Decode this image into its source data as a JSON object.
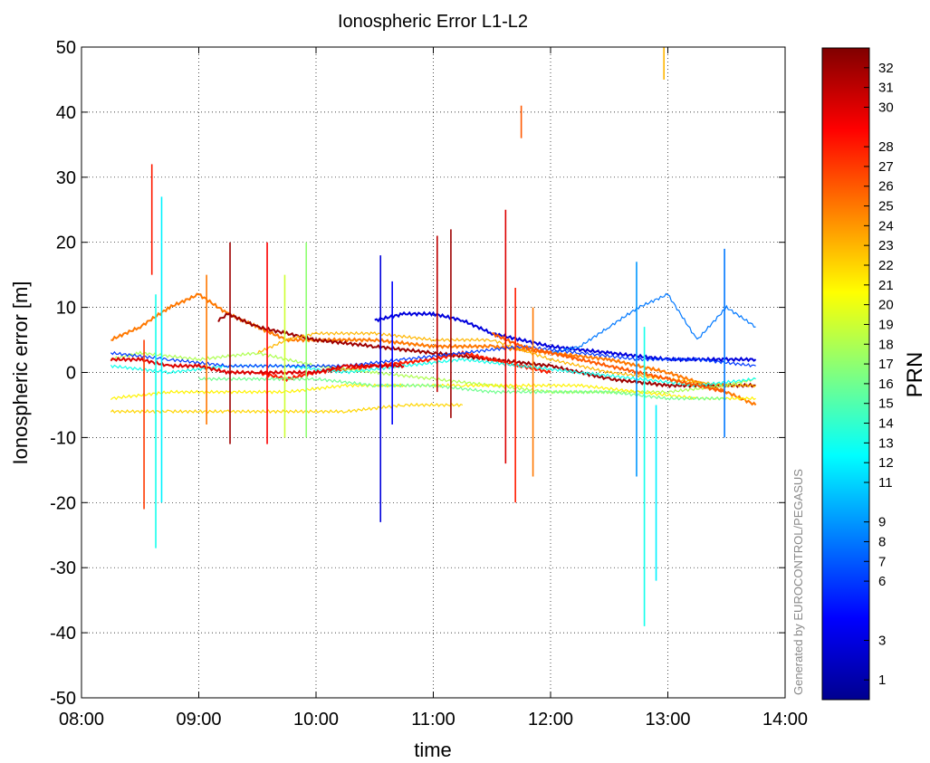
{
  "chart_data": {
    "type": "line",
    "title": "Ionospheric Error L1-L2",
    "xlabel": "time",
    "ylabel": "Ionospheric error [m]",
    "xlim": [
      "08:00",
      "14:00"
    ],
    "ylim": [
      -50,
      50
    ],
    "x_ticks": [
      "08:00",
      "09:00",
      "10:00",
      "11:00",
      "12:00",
      "13:00",
      "14:00"
    ],
    "y_ticks": [
      "50",
      "40",
      "30",
      "20",
      "10",
      "0",
      "-10",
      "-20",
      "-30",
      "-40",
      "-50"
    ],
    "grid": true,
    "grid_style": "dotted",
    "colorbar": {
      "label": "PRN",
      "range": [
        0,
        33
      ],
      "colormap": "jet",
      "ticks": [
        "32",
        "31",
        "30",
        "28",
        "27",
        "26",
        "25",
        "24",
        "23",
        "22",
        "21",
        "20",
        "19",
        "18",
        "17",
        "16",
        "15",
        "14",
        "13",
        "12",
        "11",
        "9",
        "8",
        "7",
        "6",
        "3",
        "1"
      ]
    },
    "watermark": "Generated by EUROCONTROL/PEGASUS",
    "series": [
      {
        "prn": 25,
        "points": [
          [
            "08:15",
            5
          ],
          [
            "08:30",
            7
          ],
          [
            "08:45",
            10
          ],
          [
            "09:00",
            12
          ],
          [
            "09:15",
            9
          ],
          [
            "09:30",
            7
          ],
          [
            "09:45",
            5
          ],
          [
            "10:00",
            5
          ],
          [
            "10:30",
            5
          ],
          [
            "11:00",
            4
          ],
          [
            "11:30",
            4
          ],
          [
            "12:00",
            3
          ],
          [
            "12:30",
            2
          ],
          [
            "13:00",
            0
          ],
          [
            "13:30",
            -3
          ],
          [
            "13:45",
            -5
          ]
        ]
      },
      {
        "prn": 32,
        "points": [
          [
            "09:10",
            8
          ],
          [
            "09:15",
            9
          ],
          [
            "09:30",
            7
          ],
          [
            "09:45",
            6
          ],
          [
            "10:00",
            5
          ],
          [
            "10:30",
            4
          ],
          [
            "11:00",
            3
          ],
          [
            "11:30",
            2
          ],
          [
            "12:00",
            1
          ],
          [
            "12:30",
            -1
          ],
          [
            "13:00",
            -2
          ],
          [
            "13:30",
            -2
          ],
          [
            "13:45",
            -2
          ]
        ]
      },
      {
        "prn": 3,
        "points": [
          [
            "10:30",
            8
          ],
          [
            "10:45",
            9
          ],
          [
            "11:00",
            9
          ],
          [
            "11:15",
            8
          ],
          [
            "11:30",
            6
          ],
          [
            "12:00",
            4
          ],
          [
            "12:30",
            3
          ],
          [
            "13:00",
            2
          ],
          [
            "13:30",
            2
          ],
          [
            "13:45",
            2
          ]
        ]
      },
      {
        "prn": 8,
        "points": [
          [
            "12:00",
            3
          ],
          [
            "12:15",
            4
          ],
          [
            "12:30",
            7
          ],
          [
            "12:45",
            10
          ],
          [
            "13:00",
            12
          ],
          [
            "13:15",
            5
          ],
          [
            "13:30",
            10
          ],
          [
            "13:45",
            7
          ]
        ]
      },
      {
        "prn": 28,
        "points": [
          [
            "09:30",
            0
          ],
          [
            "09:45",
            -1
          ],
          [
            "10:00",
            0
          ],
          [
            "10:30",
            1
          ],
          [
            "11:00",
            2
          ],
          [
            "11:15",
            3
          ],
          [
            "11:30",
            2
          ],
          [
            "11:45",
            1
          ],
          [
            "12:00",
            0
          ]
        ]
      },
      {
        "prn": 23,
        "points": [
          [
            "09:30",
            3
          ],
          [
            "09:45",
            5
          ],
          [
            "10:00",
            6
          ],
          [
            "10:30",
            6
          ],
          [
            "11:00",
            5
          ],
          [
            "11:30",
            5
          ],
          [
            "12:00",
            2
          ],
          [
            "12:30",
            0
          ],
          [
            "13:00",
            -1
          ],
          [
            "13:30",
            -2
          ],
          [
            "13:45",
            -2
          ]
        ]
      },
      {
        "prn": 18,
        "points": [
          [
            "08:15",
            2
          ],
          [
            "08:30",
            3
          ],
          [
            "09:00",
            2
          ],
          [
            "09:30",
            3
          ],
          [
            "10:00",
            1
          ],
          [
            "10:30",
            0
          ],
          [
            "11:00",
            -1
          ],
          [
            "11:30",
            -2
          ],
          [
            "12:00",
            -3
          ],
          [
            "12:30",
            -3
          ],
          [
            "13:00",
            -3
          ],
          [
            "13:30",
            -2
          ],
          [
            "13:45",
            -1
          ]
        ]
      },
      {
        "prn": 13,
        "points": [
          [
            "08:15",
            1
          ],
          [
            "08:45",
            0
          ],
          [
            "09:15",
            1
          ],
          [
            "09:45",
            1
          ],
          [
            "10:15",
            0
          ],
          [
            "10:45",
            1
          ],
          [
            "11:15",
            2
          ],
          [
            "11:45",
            1
          ],
          [
            "12:15",
            0
          ],
          [
            "12:45",
            -1
          ],
          [
            "13:15",
            -2
          ],
          [
            "13:45",
            -1
          ]
        ]
      },
      {
        "prn": 21,
        "points": [
          [
            "08:15",
            -4
          ],
          [
            "08:45",
            -3
          ],
          [
            "09:15",
            -3
          ],
          [
            "09:45",
            -3
          ],
          [
            "10:15",
            -2
          ],
          [
            "10:45",
            -2
          ],
          [
            "11:15",
            -2
          ],
          [
            "11:45",
            -2
          ],
          [
            "12:15",
            -2
          ],
          [
            "12:45",
            -3
          ],
          [
            "13:15",
            -4
          ],
          [
            "13:45",
            -4
          ]
        ]
      },
      {
        "prn": 22,
        "points": [
          [
            "08:15",
            -6
          ],
          [
            "08:45",
            -6
          ],
          [
            "09:15",
            -6
          ],
          [
            "09:45",
            -6
          ],
          [
            "10:15",
            -6
          ],
          [
            "10:45",
            -5
          ],
          [
            "11:15",
            -5
          ]
        ]
      },
      {
        "prn": 16,
        "points": [
          [
            "09:00",
            -1
          ],
          [
            "09:30",
            -1
          ],
          [
            "10:00",
            -1
          ],
          [
            "10:30",
            -2
          ],
          [
            "11:00",
            -2
          ],
          [
            "11:30",
            -3
          ],
          [
            "12:00",
            -3
          ],
          [
            "12:30",
            -3
          ],
          [
            "13:00",
            -4
          ],
          [
            "13:30",
            -4
          ]
        ]
      },
      {
        "prn": 6,
        "points": [
          [
            "08:15",
            3
          ],
          [
            "08:45",
            2
          ],
          [
            "09:15",
            1
          ],
          [
            "09:45",
            1
          ],
          [
            "10:15",
            1
          ],
          [
            "10:45",
            2
          ],
          [
            "11:15",
            3
          ],
          [
            "11:45",
            4
          ],
          [
            "12:15",
            3
          ],
          [
            "12:45",
            2
          ],
          [
            "13:15",
            2
          ],
          [
            "13:45",
            1
          ]
        ]
      },
      {
        "prn": 30,
        "points": [
          [
            "08:15",
            2
          ],
          [
            "08:30",
            2
          ],
          [
            "08:45",
            1
          ],
          [
            "09:00",
            1
          ],
          [
            "09:15",
            0
          ],
          [
            "09:30",
            0
          ],
          [
            "09:45",
            0
          ],
          [
            "10:00",
            0
          ],
          [
            "10:15",
            1
          ],
          [
            "10:30",
            1
          ],
          [
            "10:45",
            1
          ]
        ]
      },
      {
        "prn": 26,
        "points": [
          [
            "11:30",
            6
          ],
          [
            "11:45",
            4
          ],
          [
            "12:00",
            3
          ],
          [
            "12:15",
            2
          ],
          [
            "12:30",
            1
          ],
          [
            "12:45",
            0
          ],
          [
            "13:00",
            -1
          ],
          [
            "13:15",
            -2
          ],
          [
            "13:30",
            -3
          ]
        ]
      }
    ],
    "spikes": [
      {
        "prn": 27,
        "x": "08:32",
        "y": [
          -21,
          5
        ]
      },
      {
        "prn": 28,
        "x": "08:36",
        "y": [
          15,
          32
        ]
      },
      {
        "prn": 13,
        "x": "08:38",
        "y": [
          -27,
          12
        ]
      },
      {
        "prn": 12,
        "x": "08:41",
        "y": [
          -20,
          27
        ]
      },
      {
        "prn": 25,
        "x": "09:04",
        "y": [
          -8,
          15
        ]
      },
      {
        "prn": 32,
        "x": "09:16",
        "y": [
          -11,
          20
        ]
      },
      {
        "prn": 29,
        "x": "09:35",
        "y": [
          -11,
          20
        ]
      },
      {
        "prn": 19,
        "x": "09:44",
        "y": [
          -10,
          15
        ]
      },
      {
        "prn": 17,
        "x": "09:55",
        "y": [
          -10,
          20
        ]
      },
      {
        "prn": 3,
        "x": "10:33",
        "y": [
          -23,
          18
        ]
      },
      {
        "prn": 4,
        "x": "10:39",
        "y": [
          -8,
          14
        ]
      },
      {
        "prn": 31,
        "x": "11:02",
        "y": [
          -3,
          21
        ]
      },
      {
        "prn": 32,
        "x": "11:09",
        "y": [
          -7,
          22
        ]
      },
      {
        "prn": 30,
        "x": "11:37",
        "y": [
          -14,
          25
        ]
      },
      {
        "prn": 28,
        "x": "11:42",
        "y": [
          -20,
          13
        ]
      },
      {
        "prn": 26,
        "x": "11:45",
        "y": [
          36,
          41
        ]
      },
      {
        "prn": 25,
        "x": "11:51",
        "y": [
          -16,
          10
        ]
      },
      {
        "prn": 13,
        "x": "12:48",
        "y": [
          -39,
          7
        ]
      },
      {
        "prn": 12,
        "x": "12:54",
        "y": [
          -32,
          -5
        ]
      },
      {
        "prn": 23,
        "x": "12:58",
        "y": [
          45,
          50
        ]
      },
      {
        "prn": 8,
        "x": "13:29",
        "y": [
          -10,
          19
        ]
      },
      {
        "prn": 9,
        "x": "12:44",
        "y": [
          -16,
          17
        ]
      }
    ]
  }
}
